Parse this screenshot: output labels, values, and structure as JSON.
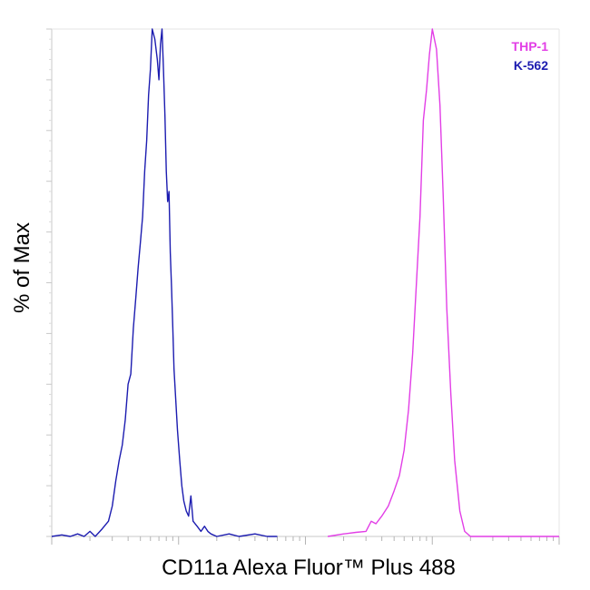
{
  "chart_data": {
    "type": "line",
    "title": "",
    "xlabel": "CD11a Alexa Fluor™ Plus 488",
    "ylabel": "% of Max",
    "x_scale": "log",
    "xlim": [
      10,
      100000
    ],
    "ylim": [
      0,
      100
    ],
    "tick_labels_shown": false,
    "grid": false,
    "legend_position": "top-right",
    "series": [
      {
        "name": "THP-1",
        "color": "#e23ee6",
        "points": [
          [
            1500,
            0
          ],
          [
            2000,
            0.5
          ],
          [
            2500,
            0.8
          ],
          [
            3000,
            1
          ],
          [
            3300,
            3
          ],
          [
            3600,
            2.5
          ],
          [
            4000,
            4
          ],
          [
            4500,
            6
          ],
          [
            5000,
            9
          ],
          [
            5500,
            12
          ],
          [
            6000,
            17
          ],
          [
            6500,
            25
          ],
          [
            7000,
            36
          ],
          [
            7500,
            50
          ],
          [
            8000,
            63
          ],
          [
            8500,
            82
          ],
          [
            9000,
            88
          ],
          [
            9500,
            95
          ],
          [
            10000,
            100
          ],
          [
            10800,
            96
          ],
          [
            11500,
            85
          ],
          [
            12200,
            67
          ],
          [
            13000,
            45
          ],
          [
            14000,
            28
          ],
          [
            15000,
            15
          ],
          [
            16500,
            5
          ],
          [
            18000,
            1
          ],
          [
            20000,
            0
          ],
          [
            100000,
            0
          ]
        ]
      },
      {
        "name": "K-562",
        "color": "#1c1cb0",
        "points": [
          [
            10,
            0
          ],
          [
            12,
            0.3
          ],
          [
            14,
            0
          ],
          [
            16,
            0.5
          ],
          [
            18,
            0
          ],
          [
            20,
            1
          ],
          [
            22,
            0
          ],
          [
            25,
            1.5
          ],
          [
            28,
            3
          ],
          [
            30,
            6
          ],
          [
            32,
            11
          ],
          [
            34,
            15
          ],
          [
            36,
            18
          ],
          [
            38,
            23
          ],
          [
            40,
            30
          ],
          [
            42,
            32
          ],
          [
            44,
            41
          ],
          [
            46,
            47
          ],
          [
            48,
            53
          ],
          [
            50,
            58
          ],
          [
            52,
            63
          ],
          [
            54,
            72
          ],
          [
            56,
            78
          ],
          [
            58,
            87
          ],
          [
            60,
            92
          ],
          [
            62,
            100
          ],
          [
            65,
            98
          ],
          [
            68,
            94
          ],
          [
            70,
            90
          ],
          [
            72,
            97
          ],
          [
            74,
            100
          ],
          [
            76,
            92
          ],
          [
            78,
            83
          ],
          [
            80,
            72
          ],
          [
            82,
            66
          ],
          [
            84,
            68
          ],
          [
            86,
            56
          ],
          [
            88,
            49
          ],
          [
            90,
            41
          ],
          [
            92,
            33
          ],
          [
            95,
            27
          ],
          [
            98,
            21
          ],
          [
            102,
            15
          ],
          [
            106,
            10
          ],
          [
            110,
            7
          ],
          [
            115,
            5
          ],
          [
            120,
            4
          ],
          [
            125,
            8
          ],
          [
            130,
            3
          ],
          [
            140,
            2
          ],
          [
            150,
            1
          ],
          [
            160,
            2
          ],
          [
            170,
            1
          ],
          [
            180,
            0.5
          ],
          [
            200,
            0
          ],
          [
            250,
            0.5
          ],
          [
            300,
            0
          ],
          [
            400,
            0.5
          ],
          [
            500,
            0
          ],
          [
            600,
            0
          ]
        ]
      }
    ]
  }
}
